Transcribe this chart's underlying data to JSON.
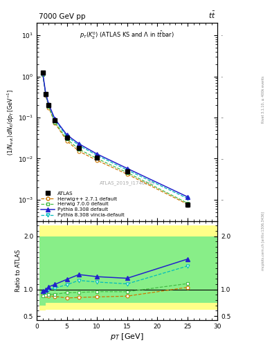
{
  "atlas_pt": [
    1.0,
    1.5,
    2.0,
    3.0,
    5.0,
    7.0,
    10.0,
    15.0,
    25.0
  ],
  "atlas_val": [
    1.25,
    0.38,
    0.2,
    0.085,
    0.032,
    0.018,
    0.0105,
    0.0048,
    0.00075
  ],
  "atlas_err_lo": [
    0.08,
    0.02,
    0.012,
    0.005,
    0.002,
    0.001,
    0.0006,
    0.0003,
    8e-05
  ],
  "atlas_err_hi": [
    0.08,
    0.02,
    0.012,
    0.005,
    0.002,
    0.001,
    0.0006,
    0.0003,
    8e-05
  ],
  "herwig271_pt": [
    1.0,
    1.5,
    2.0,
    3.0,
    5.0,
    7.0,
    10.0,
    15.0,
    25.0
  ],
  "herwig271_val": [
    1.15,
    0.34,
    0.175,
    0.074,
    0.027,
    0.0152,
    0.0091,
    0.0042,
    0.00078
  ],
  "herwig700_pt": [
    1.0,
    1.5,
    2.0,
    3.0,
    5.0,
    7.0,
    10.0,
    15.0,
    25.0
  ],
  "herwig700_val": [
    1.1,
    0.355,
    0.183,
    0.077,
    0.03,
    0.017,
    0.0101,
    0.0046,
    0.00083
  ],
  "pythia308_pt": [
    1.0,
    1.5,
    2.0,
    3.0,
    5.0,
    7.0,
    10.0,
    15.0,
    25.0
  ],
  "pythia308_val": [
    1.22,
    0.375,
    0.21,
    0.093,
    0.038,
    0.023,
    0.013,
    0.0058,
    0.00118
  ],
  "pythia308v_pt": [
    1.0,
    1.5,
    2.0,
    3.0,
    5.0,
    7.0,
    10.0,
    15.0,
    25.0
  ],
  "pythia308v_val": [
    1.18,
    0.365,
    0.2,
    0.087,
    0.035,
    0.021,
    0.012,
    0.0053,
    0.00108
  ],
  "ratio_pt": [
    1.0,
    1.5,
    2.0,
    3.0,
    5.0,
    7.0,
    10.0,
    15.0,
    25.0
  ],
  "ratio_herwig271": [
    0.92,
    0.89,
    0.88,
    0.87,
    0.84,
    0.85,
    0.86,
    0.875,
    1.04
  ],
  "ratio_herwig700": [
    0.88,
    0.94,
    0.91,
    0.91,
    0.94,
    0.945,
    0.96,
    0.958,
    1.11
  ],
  "ratio_pythia308": [
    0.975,
    0.99,
    1.05,
    1.095,
    1.19,
    1.28,
    1.24,
    1.21,
    1.57
  ],
  "ratio_pythia308v": [
    0.945,
    0.96,
    1.0,
    1.025,
    1.09,
    1.17,
    1.14,
    1.105,
    1.44
  ],
  "band_yellow_edges": [
    0.5,
    1.5,
    1.5,
    3.5,
    3.5,
    11.0,
    11.0,
    20.0,
    20.0,
    30.0
  ],
  "band_yellow_lo": [
    0.6,
    0.6,
    0.62,
    0.62,
    0.62,
    0.62,
    0.62,
    0.62,
    0.62,
    0.62
  ],
  "band_yellow_hi": [
    2.2,
    2.2,
    2.2,
    2.2,
    2.2,
    2.2,
    2.2,
    2.2,
    2.2,
    2.2
  ],
  "band_green_edges": [
    0.5,
    1.5,
    1.5,
    3.5,
    3.5,
    11.0,
    11.0,
    20.0,
    20.0,
    30.0
  ],
  "band_green_lo": [
    0.7,
    0.7,
    0.75,
    0.75,
    0.75,
    0.75,
    0.75,
    0.75,
    0.75,
    0.75
  ],
  "band_green_hi": [
    2.0,
    2.0,
    2.0,
    2.0,
    2.0,
    2.0,
    2.0,
    2.0,
    2.0,
    2.0
  ],
  "color_herwig271": "#cc7700",
  "color_herwig700": "#44bb44",
  "color_pythia308": "#2222cc",
  "color_pythia308v": "#00bbbb",
  "color_atlas": "#000000",
  "color_yellow": "#ffff88",
  "color_green": "#88ee88",
  "xlim": [
    0,
    30
  ],
  "ylim_main": [
    0.0003,
    20
  ],
  "ylim_ratio": [
    0.42,
    2.28
  ],
  "ratio_yticks": [
    0.5,
    1.0,
    2.0
  ]
}
